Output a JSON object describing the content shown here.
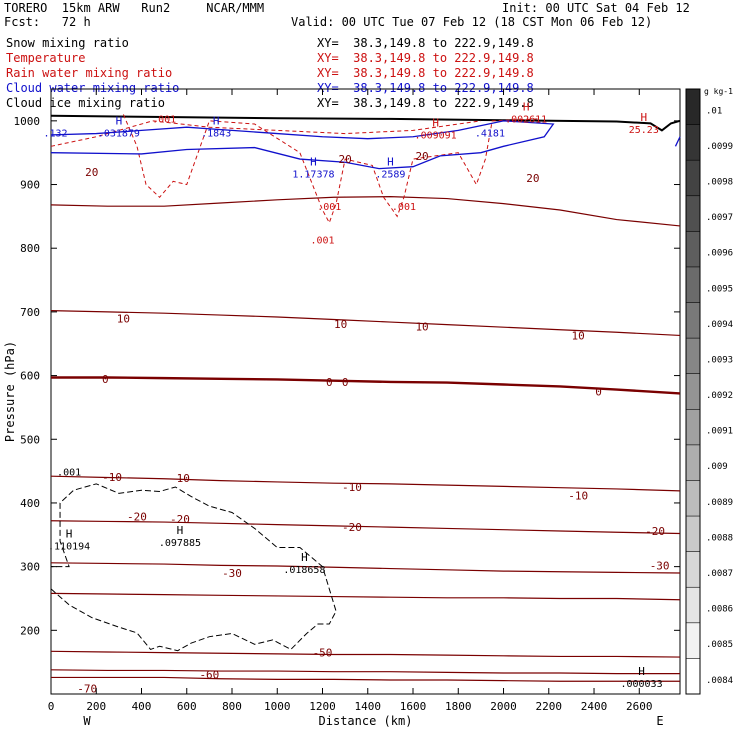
{
  "header": {
    "model": "TORERO  15km ARW   Run2     NCAR/MMM",
    "init": "Init: 00 UTC Sat 04 Feb 12",
    "fcst": "Fcst:   72 h",
    "valid": "Valid: 00 UTC Tue 07 Feb 12 (18 CST Mon 06 Feb 12)"
  },
  "fields": [
    {
      "label": "Snow mixing ratio",
      "xy": "XY=  38.3,149.8 to 222.9,149.8",
      "color": "#000000"
    },
    {
      "label": "Temperature",
      "xy": "XY=  38.3,149.8 to 222.9,149.8",
      "color": "#cc1111"
    },
    {
      "label": "Rain water mixing ratio",
      "xy": "XY=  38.3,149.8 to 222.9,149.8",
      "color": "#cc1111"
    },
    {
      "label": "Cloud water mixing ratio",
      "xy": "XY=  38.3,149.8 to 222.9,149.8",
      "color": "#1111cc"
    },
    {
      "label": "Cloud ice mixing ratio",
      "xy": "XY=  38.3,149.8 to 222.9,149.8",
      "color": "#000000"
    }
  ],
  "chart_data": {
    "type": "cross-section contour",
    "xlabel": "Distance (km)",
    "ylabel": "Pressure (hPa)",
    "x_ticks": [
      0,
      200,
      400,
      600,
      800,
      1000,
      1200,
      1400,
      1600,
      1800,
      2000,
      2200,
      2400,
      2600
    ],
    "y_ticks": [
      200,
      300,
      400,
      500,
      600,
      700,
      800,
      900,
      1000
    ],
    "xlim": [
      0,
      2780
    ],
    "ylim": [
      1050,
      100
    ],
    "endpoints": {
      "left": "W",
      "right": "E"
    },
    "colorbar": {
      "unit": "g kg-1",
      "ticks": [
        ".01",
        ".0099",
        ".0098",
        ".0097",
        ".0096",
        ".0095",
        ".0094",
        ".0093",
        ".0092",
        ".0091",
        ".009",
        ".0089",
        ".0088",
        ".0087",
        ".0086",
        ".0085",
        ".0084"
      ]
    },
    "temperature_contours": [
      {
        "level": -70,
        "y": [
          126,
          126,
          126,
          124,
          123,
          123,
          122,
          122,
          121,
          120,
          120,
          120
        ]
      },
      {
        "level": -60,
        "y": [
          138,
          137,
          137,
          136,
          136,
          135,
          135,
          134,
          133,
          133,
          132,
          132
        ]
      },
      {
        "level": -50,
        "y": [
          167,
          166,
          165,
          164,
          163,
          162,
          162,
          161,
          160,
          159,
          159,
          158
        ]
      },
      {
        "level": -40,
        "y": [
          258,
          257,
          256,
          255,
          254,
          253,
          252,
          251,
          251,
          250,
          250,
          248
        ]
      },
      {
        "level": -30,
        "y": [
          306,
          305,
          304,
          302,
          301,
          299,
          297,
          295,
          293,
          292,
          291,
          290
        ]
      },
      {
        "level": -20,
        "y": [
          372,
          371,
          370,
          368,
          366,
          364,
          362,
          360,
          358,
          356,
          354,
          352
        ]
      },
      {
        "level": -10,
        "y": [
          442,
          440,
          438,
          435,
          433,
          431,
          430,
          428,
          426,
          424,
          422,
          419
        ]
      },
      {
        "level": 0,
        "y": [
          597,
          597,
          596,
          595,
          594,
          592,
          590,
          589,
          586,
          583,
          578,
          572
        ]
      },
      {
        "level": 10,
        "y": [
          702,
          700,
          698,
          695,
          692,
          688,
          684,
          680,
          676,
          672,
          668,
          663
        ]
      },
      {
        "level": 20,
        "y": [
          868,
          866,
          866,
          871,
          876,
          880,
          881,
          878,
          870,
          860,
          845,
          835
        ]
      }
    ],
    "contour_x": [
      0,
      250,
      500,
      750,
      1000,
      1250,
      1500,
      1750,
      2000,
      2250,
      2500,
      2780
    ],
    "temperature_labels": [
      {
        "text": "-70",
        "x": 160,
        "p": 109
      },
      {
        "text": "-60",
        "x": 700,
        "p": 131
      },
      {
        "text": "-50",
        "x": 1200,
        "p": 165
      },
      {
        "text": "-30",
        "x": 800,
        "p": 290
      },
      {
        "text": "-30",
        "x": 2690,
        "p": 302
      },
      {
        "text": "-20",
        "x": 380,
        "p": 379
      },
      {
        "text": "-20",
        "x": 570,
        "p": 375
      },
      {
        "text": "-20",
        "x": 1330,
        "p": 362
      },
      {
        "text": "-20",
        "x": 2670,
        "p": 356
      },
      {
        "text": "-10",
        "x": 270,
        "p": 441
      },
      {
        "text": "-10",
        "x": 570,
        "p": 439
      },
      {
        "text": "-10",
        "x": 1330,
        "p": 425
      },
      {
        "text": "-10",
        "x": 2330,
        "p": 412
      },
      {
        "text": "0",
        "x": 240,
        "p": 595
      },
      {
        "text": "0",
        "x": 1230,
        "p": 590
      },
      {
        "text": "0",
        "x": 1300,
        "p": 590
      },
      {
        "text": "0",
        "x": 2420,
        "p": 575
      },
      {
        "text": "10",
        "x": 320,
        "p": 690
      },
      {
        "text": "10",
        "x": 1280,
        "p": 681
      },
      {
        "text": "10",
        "x": 1640,
        "p": 677
      },
      {
        "text": "10",
        "x": 2330,
        "p": 663
      },
      {
        "text": "20",
        "x": 180,
        "p": 920
      },
      {
        "text": "20",
        "x": 1300,
        "p": 940
      },
      {
        "text": "20",
        "x": 1640,
        "p": 945
      },
      {
        "text": "20",
        "x": 2130,
        "p": 910
      }
    ],
    "maxima": [
      {
        "text": ".000033",
        "x": 2610,
        "p": 119,
        "h": "H"
      },
      {
        "text": ".018658",
        "x": 1120,
        "p": 298,
        "h": "H"
      },
      {
        "text": ".110194",
        "x": 80,
        "p": 335,
        "h": "H"
      },
      {
        "text": ".097885",
        "x": 570,
        "p": 340,
        "h": "H"
      },
      {
        "text": ".001",
        "x": 80,
        "p": 451
      },
      {
        "text": ".001",
        "x": 1200,
        "p": 815,
        "color": "red"
      },
      {
        "text": ".001",
        "x": 1230,
        "p": 868,
        "color": "red"
      },
      {
        "text": ".001",
        "x": 1560,
        "p": 868,
        "color": "red"
      },
      {
        "text": "1.17378",
        "x": 1160,
        "p": 919,
        "h": "H",
        "color": "blue"
      },
      {
        "text": ".2589",
        "x": 1500,
        "p": 919,
        "h": "H",
        "color": "blue"
      },
      {
        "text": ".132",
        "x": 20,
        "p": 983,
        "color": "blue"
      },
      {
        "text": ".031879",
        "x": 300,
        "p": 983,
        "h": "H",
        "color": "blue"
      },
      {
        "text": ".1843",
        "x": 730,
        "p": 983,
        "h": "H",
        "color": "blue"
      },
      {
        "text": ".009091",
        "x": 1700,
        "p": 980,
        "h": "H",
        "color": "red"
      },
      {
        "text": ".4181",
        "x": 1940,
        "p": 983,
        "color": "blue"
      },
      {
        "text": ".002611",
        "x": 2100,
        "p": 1005,
        "h": "H",
        "color": "red"
      },
      {
        "text": "25.23",
        "x": 2620,
        "p": 989,
        "h": "H",
        "color": "red"
      },
      {
        "text": ".001",
        "x": 500,
        "p": 1005,
        "color": "red"
      }
    ]
  }
}
